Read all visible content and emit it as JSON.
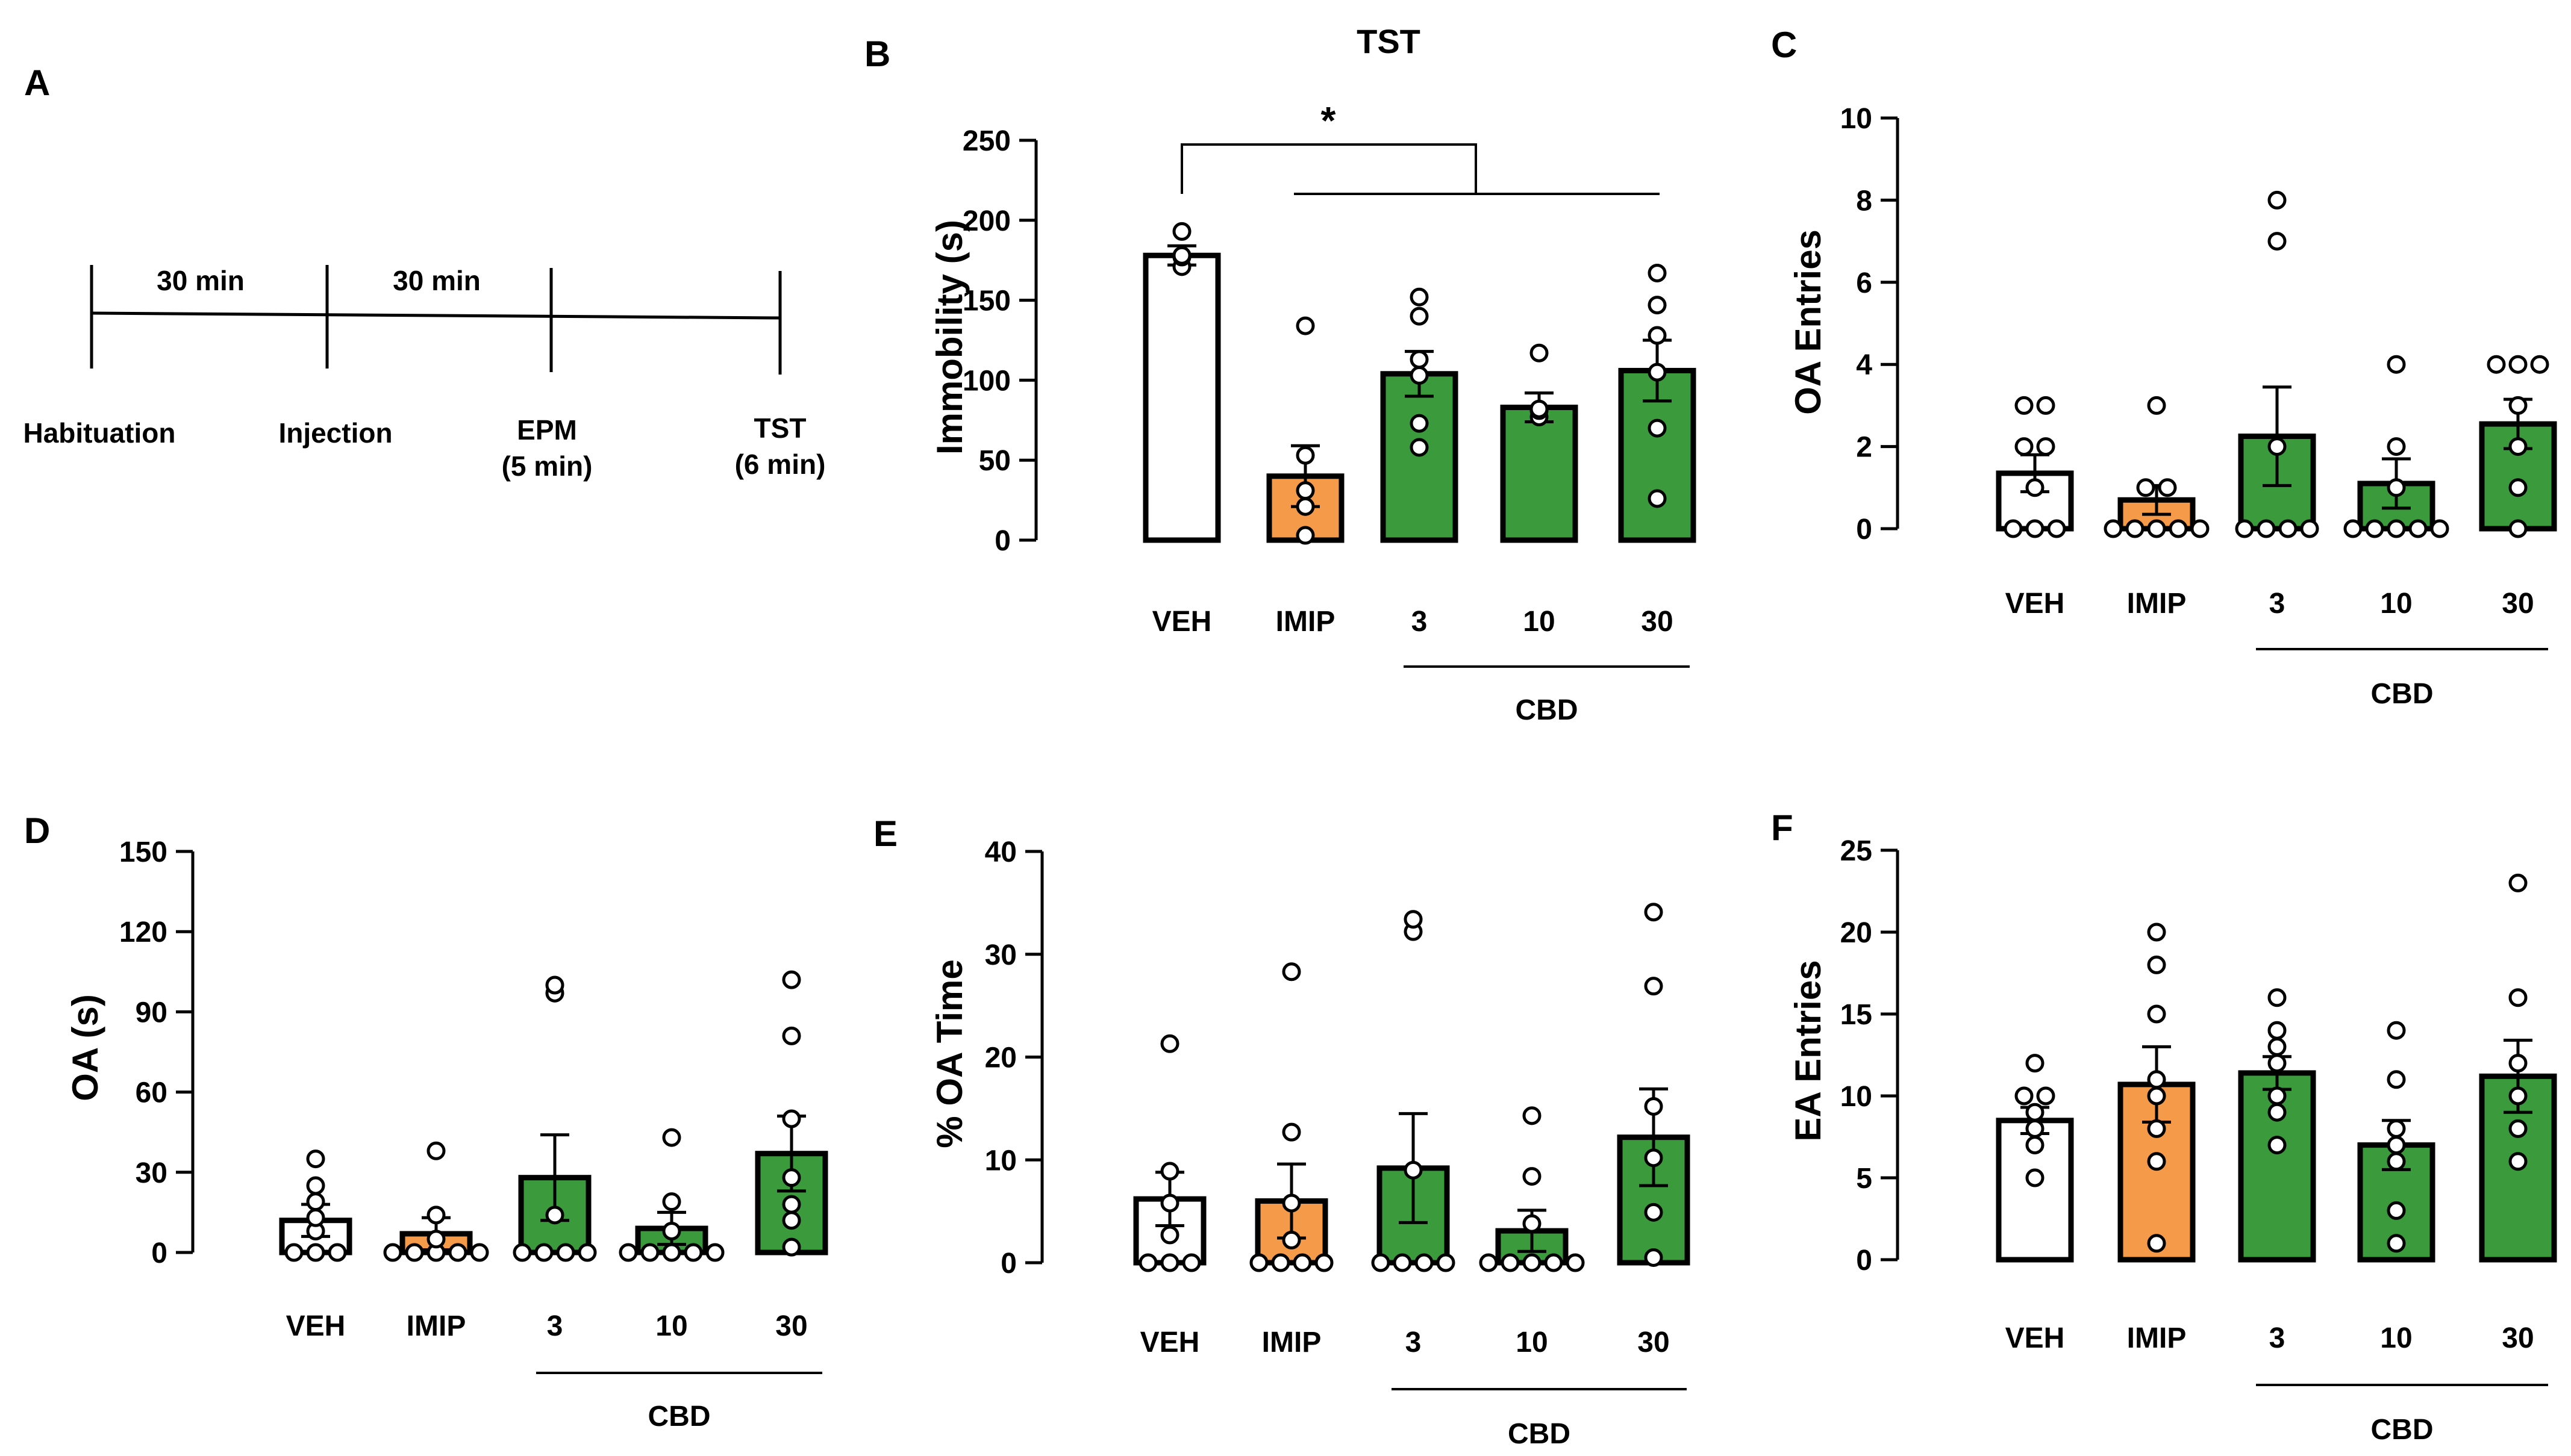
{
  "colors": {
    "veh": "#ffffff",
    "imip": "#f59a48",
    "cbd": "#3b9a3c",
    "axis": "#000000"
  },
  "panel_a": {
    "letter": "A",
    "intervals": [
      "30 min",
      "30 min"
    ],
    "steps": [
      {
        "line1": "Habituation",
        "line2": ""
      },
      {
        "line1": "Injection",
        "line2": ""
      },
      {
        "line1": "EPM",
        "line2": "(5 min)"
      },
      {
        "line1": "TST",
        "line2": "(6 min)"
      }
    ]
  },
  "chart_data": [
    {
      "id": "B",
      "letter": "B",
      "type": "bar",
      "title": "TST",
      "ylabel": "Immobility (s)",
      "ylim": [
        0,
        250
      ],
      "yticks": [
        0,
        50,
        100,
        150,
        200,
        250
      ],
      "categories": [
        "VEH",
        "IMIP",
        "3",
        "10",
        "30"
      ],
      "group_label": "CBD",
      "values": [
        178,
        40,
        104,
        83,
        106
      ],
      "sem": [
        6,
        19,
        14,
        9,
        19
      ],
      "points": [
        [
          171,
          177,
          178,
          193
        ],
        [
          3,
          21,
          31,
          53,
          134
        ],
        [
          58,
          73,
          103,
          113,
          140,
          152
        ],
        [
          77,
          81,
          82,
          117
        ],
        [
          26,
          70,
          105,
          128,
          147,
          167
        ]
      ],
      "significance": "*"
    },
    {
      "id": "C",
      "letter": "C",
      "type": "bar",
      "title": "",
      "ylabel": "OA Entries",
      "ylim": [
        0,
        10
      ],
      "yticks": [
        0,
        2,
        4,
        6,
        8,
        10
      ],
      "categories": [
        "VEH",
        "IMIP",
        "3",
        "10",
        "30"
      ],
      "group_label": "CBD",
      "values": [
        1.35,
        0.7,
        2.25,
        1.1,
        2.55
      ],
      "sem": [
        0.45,
        0.35,
        1.2,
        0.6,
        0.6
      ],
      "points": [
        [
          0,
          0,
          0,
          1,
          2,
          2,
          3,
          3
        ],
        [
          0,
          0,
          0,
          0,
          0,
          1,
          1,
          3
        ],
        [
          0,
          0,
          0,
          0,
          2,
          7,
          8
        ],
        [
          0,
          0,
          0,
          0,
          0,
          1,
          2,
          4
        ],
        [
          0,
          1,
          2,
          3,
          4,
          4,
          4
        ]
      ],
      "significance": ""
    },
    {
      "id": "D",
      "letter": "D",
      "type": "bar",
      "title": "",
      "ylabel": "OA (s)",
      "ylim": [
        0,
        150
      ],
      "yticks": [
        0,
        30,
        60,
        90,
        120,
        150
      ],
      "categories": [
        "VEH",
        "IMIP",
        "3",
        "10",
        "30"
      ],
      "group_label": "CBD",
      "values": [
        12,
        7,
        28,
        9,
        37
      ],
      "sem": [
        6,
        6,
        16,
        6,
        14
      ],
      "points": [
        [
          0,
          0,
          0,
          8,
          13,
          19,
          25,
          35
        ],
        [
          0,
          0,
          0,
          0,
          0,
          5,
          14,
          38
        ],
        [
          0,
          0,
          0,
          0,
          14,
          97,
          100
        ],
        [
          0,
          0,
          0,
          0,
          0,
          8,
          19,
          43
        ],
        [
          2,
          12,
          18,
          28,
          50,
          81,
          102
        ]
      ],
      "significance": ""
    },
    {
      "id": "E",
      "letter": "E",
      "type": "bar",
      "title": "",
      "ylabel": "% OA Time",
      "ylim": [
        0,
        40
      ],
      "yticks": [
        0,
        10,
        20,
        30,
        40
      ],
      "categories": [
        "VEH",
        "IMIP",
        "3",
        "10",
        "30"
      ],
      "group_label": "CBD",
      "values": [
        6.2,
        6,
        9.2,
        3.1,
        12.2
      ],
      "sem": [
        2.6,
        3.6,
        5.3,
        2,
        4.7
      ],
      "points": [
        [
          0,
          0,
          0,
          2.7,
          5.8,
          8.9,
          21.3
        ],
        [
          0,
          0,
          0,
          0,
          2.2,
          5.8,
          12.7,
          28.3
        ],
        [
          0,
          0,
          0,
          0,
          9,
          32.2,
          33.4
        ],
        [
          0,
          0,
          0,
          0,
          0,
          3.8,
          8.4,
          14.3
        ],
        [
          0.5,
          4.9,
          10.2,
          15.2,
          26.9,
          34.1
        ]
      ],
      "significance": ""
    },
    {
      "id": "F",
      "letter": "F",
      "type": "bar",
      "title": "",
      "ylabel": "EA Entries",
      "ylim": [
        0,
        25
      ],
      "yticks": [
        0,
        5,
        10,
        15,
        20,
        25
      ],
      "categories": [
        "VEH",
        "IMIP",
        "3",
        "10",
        "30"
      ],
      "group_label": "CBD",
      "values": [
        8.5,
        10.7,
        11.4,
        7,
        11.2
      ],
      "sem": [
        0.8,
        2.3,
        1,
        1.5,
        2.2
      ],
      "points": [
        [
          5,
          7,
          8,
          9,
          10,
          10,
          12
        ],
        [
          1,
          6,
          8,
          10,
          11,
          15,
          18,
          20
        ],
        [
          7,
          9,
          10,
          12,
          13,
          14,
          16
        ],
        [
          1,
          3,
          6,
          7,
          8,
          11,
          14
        ],
        [
          6,
          8,
          10,
          12,
          16,
          23
        ]
      ],
      "significance": ""
    }
  ]
}
